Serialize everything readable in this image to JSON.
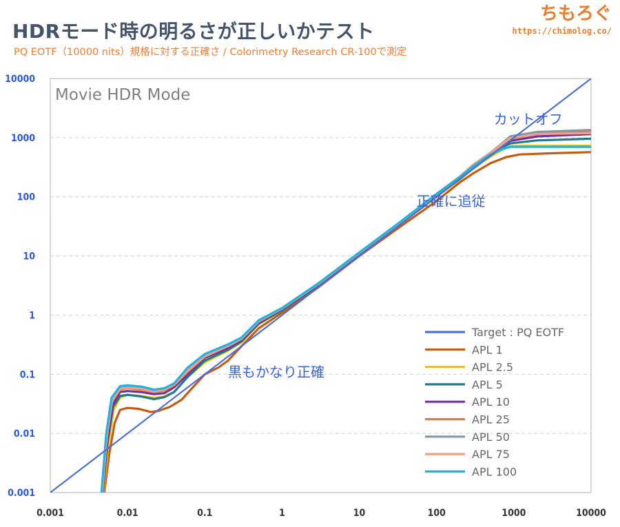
{
  "header": {
    "title": "HDRモード時の明るさが正しいかテスト",
    "subtitle": "PQ EOTF（10000 nits）規格に対する正確さ / Colorimetry Research CR-100で測定",
    "brand_name": "ちもろぐ",
    "brand_url": "https://chimolog.co/"
  },
  "chart_data": {
    "type": "line",
    "title": "Movie HDR Mode",
    "x_scale": "log",
    "y_scale": "log",
    "xlim": [
      0.001,
      10000
    ],
    "ylim": [
      0.001,
      10000
    ],
    "x_ticks": [
      "0.001",
      "0.01",
      "0.1",
      "1",
      "10",
      "100",
      "1000",
      "10000"
    ],
    "y_ticks": [
      "0.001",
      "0.01",
      "0.1",
      "1",
      "10",
      "100",
      "1000",
      "10000"
    ],
    "grid": "horizontal dashed",
    "legend_position": "bottom-right",
    "annotations": [
      {
        "text": "カットオフ",
        "x": 550,
        "y": 1700
      },
      {
        "text": "正確に追従",
        "x": 55,
        "y": 70
      },
      {
        "text": "黒もかなり正確",
        "x": 0.2,
        "y": 0.09
      }
    ],
    "series": [
      {
        "name": "Target : PQ EOTF",
        "color": "#4a6fd8",
        "points": [
          [
            0.001,
            0.001
          ],
          [
            10000,
            10000
          ]
        ]
      },
      {
        "name": "APL 1",
        "color": "#c55a11",
        "points": [
          [
            0.005,
            0.001
          ],
          [
            0.0058,
            0.0045
          ],
          [
            0.0068,
            0.015
          ],
          [
            0.008,
            0.025
          ],
          [
            0.01,
            0.027
          ],
          [
            0.014,
            0.026
          ],
          [
            0.02,
            0.023
          ],
          [
            0.025,
            0.024
          ],
          [
            0.035,
            0.028
          ],
          [
            0.05,
            0.037
          ],
          [
            0.07,
            0.06
          ],
          [
            0.1,
            0.1
          ],
          [
            0.15,
            0.13
          ],
          [
            0.2,
            0.17
          ],
          [
            0.3,
            0.3
          ],
          [
            0.5,
            0.6
          ],
          [
            1,
            1.1
          ],
          [
            3,
            3
          ],
          [
            10,
            10
          ],
          [
            30,
            28
          ],
          [
            100,
            85
          ],
          [
            200,
            175
          ],
          [
            300,
            250
          ],
          [
            500,
            370
          ],
          [
            800,
            470
          ],
          [
            1200,
            520
          ],
          [
            3000,
            545
          ],
          [
            10000,
            570
          ]
        ]
      },
      {
        "name": "APL 2.5",
        "color": "#f3c300",
        "points": [
          [
            0.0049,
            0.001
          ],
          [
            0.0056,
            0.006
          ],
          [
            0.0066,
            0.025
          ],
          [
            0.008,
            0.04
          ],
          [
            0.01,
            0.045
          ],
          [
            0.015,
            0.043
          ],
          [
            0.022,
            0.04
          ],
          [
            0.03,
            0.042
          ],
          [
            0.04,
            0.05
          ],
          [
            0.06,
            0.09
          ],
          [
            0.1,
            0.16
          ],
          [
            0.2,
            0.25
          ],
          [
            0.3,
            0.35
          ],
          [
            0.5,
            0.7
          ],
          [
            1,
            1.2
          ],
          [
            3,
            3.2
          ],
          [
            10,
            10.5
          ],
          [
            30,
            31
          ],
          [
            100,
            100
          ],
          [
            200,
            195
          ],
          [
            300,
            300
          ],
          [
            500,
            480
          ],
          [
            700,
            620
          ],
          [
            900,
            720
          ],
          [
            1500,
            730
          ],
          [
            10000,
            730
          ]
        ]
      },
      {
        "name": "APL 5",
        "color": "#1f7a8c",
        "points": [
          [
            0.0048,
            0.001
          ],
          [
            0.0055,
            0.007
          ],
          [
            0.0065,
            0.028
          ],
          [
            0.008,
            0.043
          ],
          [
            0.01,
            0.045
          ],
          [
            0.015,
            0.042
          ],
          [
            0.022,
            0.038
          ],
          [
            0.03,
            0.041
          ],
          [
            0.04,
            0.05
          ],
          [
            0.06,
            0.09
          ],
          [
            0.1,
            0.17
          ],
          [
            0.2,
            0.26
          ],
          [
            0.3,
            0.36
          ],
          [
            0.5,
            0.72
          ],
          [
            1,
            1.2
          ],
          [
            3,
            3.2
          ],
          [
            10,
            10.5
          ],
          [
            30,
            31
          ],
          [
            100,
            105
          ],
          [
            200,
            200
          ],
          [
            300,
            320
          ],
          [
            500,
            500
          ],
          [
            700,
            680
          ],
          [
            900,
            800
          ],
          [
            2000,
            900
          ],
          [
            10000,
            960
          ]
        ]
      },
      {
        "name": "APL 10",
        "color": "#7030a0",
        "points": [
          [
            0.0048,
            0.001
          ],
          [
            0.0055,
            0.008
          ],
          [
            0.0064,
            0.03
          ],
          [
            0.008,
            0.05
          ],
          [
            0.01,
            0.052
          ],
          [
            0.015,
            0.05
          ],
          [
            0.022,
            0.046
          ],
          [
            0.03,
            0.048
          ],
          [
            0.04,
            0.06
          ],
          [
            0.06,
            0.1
          ],
          [
            0.1,
            0.19
          ],
          [
            0.2,
            0.28
          ],
          [
            0.3,
            0.38
          ],
          [
            0.5,
            0.75
          ],
          [
            1,
            1.25
          ],
          [
            3,
            3.3
          ],
          [
            10,
            11
          ],
          [
            30,
            32
          ],
          [
            100,
            108
          ],
          [
            200,
            210
          ],
          [
            300,
            330
          ],
          [
            500,
            520
          ],
          [
            700,
            720
          ],
          [
            900,
            880
          ],
          [
            2000,
            1050
          ],
          [
            10000,
            1150
          ]
        ]
      },
      {
        "name": "APL 25",
        "color": "#e07b3d",
        "points": [
          [
            0.0047,
            0.001
          ],
          [
            0.0054,
            0.009
          ],
          [
            0.0063,
            0.035
          ],
          [
            0.008,
            0.055
          ],
          [
            0.01,
            0.058
          ],
          [
            0.015,
            0.055
          ],
          [
            0.022,
            0.05
          ],
          [
            0.03,
            0.053
          ],
          [
            0.04,
            0.065
          ],
          [
            0.06,
            0.11
          ],
          [
            0.1,
            0.2
          ],
          [
            0.2,
            0.3
          ],
          [
            0.3,
            0.4
          ],
          [
            0.5,
            0.78
          ],
          [
            1,
            1.28
          ],
          [
            3,
            3.4
          ],
          [
            10,
            11.2
          ],
          [
            30,
            33
          ],
          [
            100,
            110
          ],
          [
            200,
            215
          ],
          [
            300,
            340
          ],
          [
            500,
            540
          ],
          [
            700,
            760
          ],
          [
            900,
            950
          ],
          [
            2000,
            1150
          ],
          [
            10000,
            1280
          ]
        ]
      },
      {
        "name": "APL 50",
        "color": "#8497a4",
        "points": [
          [
            0.0047,
            0.001
          ],
          [
            0.0054,
            0.009
          ],
          [
            0.0063,
            0.036
          ],
          [
            0.008,
            0.058
          ],
          [
            0.01,
            0.06
          ],
          [
            0.015,
            0.058
          ],
          [
            0.022,
            0.052
          ],
          [
            0.03,
            0.056
          ],
          [
            0.04,
            0.068
          ],
          [
            0.06,
            0.12
          ],
          [
            0.1,
            0.21
          ],
          [
            0.2,
            0.31
          ],
          [
            0.3,
            0.41
          ],
          [
            0.5,
            0.8
          ],
          [
            1,
            1.3
          ],
          [
            3,
            3.45
          ],
          [
            10,
            11.3
          ],
          [
            30,
            33
          ],
          [
            100,
            112
          ],
          [
            200,
            220
          ],
          [
            300,
            350
          ],
          [
            500,
            560
          ],
          [
            700,
            800
          ],
          [
            900,
            1050
          ],
          [
            2000,
            1250
          ],
          [
            10000,
            1350
          ]
        ]
      },
      {
        "name": "APL 75",
        "color": "#f0a08a",
        "points": [
          [
            0.0047,
            0.001
          ],
          [
            0.0054,
            0.009
          ],
          [
            0.0063,
            0.036
          ],
          [
            0.008,
            0.057
          ],
          [
            0.01,
            0.059
          ],
          [
            0.015,
            0.057
          ],
          [
            0.022,
            0.051
          ],
          [
            0.03,
            0.055
          ],
          [
            0.04,
            0.067
          ],
          [
            0.06,
            0.115
          ],
          [
            0.1,
            0.2
          ],
          [
            0.2,
            0.3
          ],
          [
            0.3,
            0.4
          ],
          [
            0.5,
            0.79
          ],
          [
            1,
            1.29
          ],
          [
            3,
            3.4
          ],
          [
            10,
            11.2
          ],
          [
            30,
            33
          ],
          [
            100,
            111
          ],
          [
            200,
            218
          ],
          [
            300,
            345
          ],
          [
            500,
            550
          ],
          [
            700,
            780
          ],
          [
            900,
            980
          ],
          [
            2000,
            1150
          ],
          [
            10000,
            1200
          ]
        ]
      },
      {
        "name": "APL 100",
        "color": "#1fb4e0",
        "points": [
          [
            0.0046,
            0.001
          ],
          [
            0.0053,
            0.01
          ],
          [
            0.0062,
            0.04
          ],
          [
            0.008,
            0.063
          ],
          [
            0.01,
            0.065
          ],
          [
            0.015,
            0.062
          ],
          [
            0.022,
            0.055
          ],
          [
            0.03,
            0.058
          ],
          [
            0.04,
            0.07
          ],
          [
            0.06,
            0.13
          ],
          [
            0.1,
            0.22
          ],
          [
            0.2,
            0.32
          ],
          [
            0.3,
            0.42
          ],
          [
            0.5,
            0.82
          ],
          [
            1,
            1.32
          ],
          [
            3,
            3.5
          ],
          [
            10,
            11.5
          ],
          [
            30,
            33.5
          ],
          [
            100,
            112
          ],
          [
            200,
            215
          ],
          [
            300,
            330
          ],
          [
            500,
            520
          ],
          [
            700,
            640
          ],
          [
            900,
            700
          ],
          [
            2000,
            700
          ],
          [
            10000,
            700
          ]
        ]
      }
    ]
  }
}
